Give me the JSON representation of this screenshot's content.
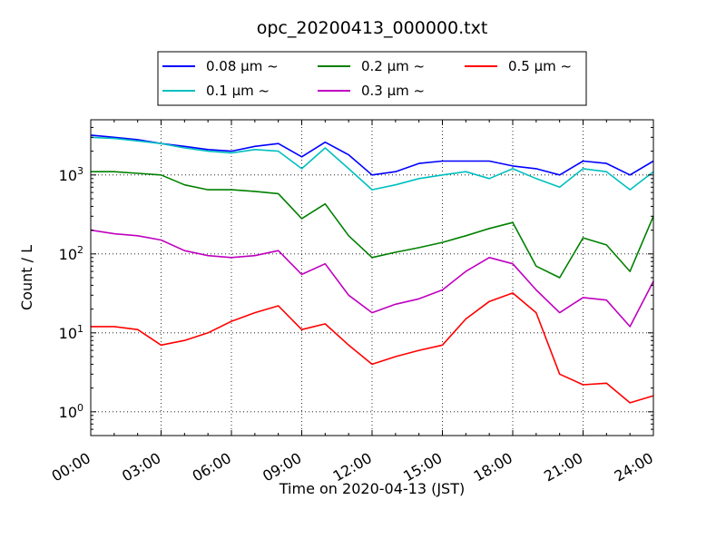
{
  "chart_data": {
    "type": "line",
    "title": "opc_20200413_000000.txt",
    "xlabel": "Time on 2020-04-13 (JST)",
    "ylabel": "Count / L",
    "y_scale": "log",
    "ylim": [
      0.5,
      5000
    ],
    "xlim": [
      "2020-04-13 00:00",
      "2020-04-14 00:00"
    ],
    "x_tick_labels": [
      "00:00",
      "03:00",
      "06:00",
      "09:00",
      "12:00",
      "15:00",
      "18:00",
      "21:00",
      "24:00"
    ],
    "y_ticks": [
      {
        "value": 1,
        "base": "10",
        "exp": "0"
      },
      {
        "value": 10,
        "base": "10",
        "exp": "1"
      },
      {
        "value": 100,
        "base": "10",
        "exp": "2"
      },
      {
        "value": 1000,
        "base": "10",
        "exp": "3"
      }
    ],
    "grid": true,
    "legend_position": "top-center (outside plot)",
    "x": [
      "00:00",
      "01:00",
      "02:00",
      "03:00",
      "04:00",
      "05:00",
      "06:00",
      "07:00",
      "08:00",
      "09:00",
      "10:00",
      "11:00",
      "12:00",
      "13:00",
      "14:00",
      "15:00",
      "16:00",
      "17:00",
      "18:00",
      "19:00",
      "20:00",
      "21:00",
      "22:00",
      "23:00",
      "24:00"
    ],
    "series": [
      {
        "name": "0.08 μm ~",
        "color": "#0000ff",
        "values": [
          3200,
          3000,
          2800,
          2500,
          2300,
          2100,
          2000,
          2300,
          2500,
          1700,
          2600,
          1800,
          1000,
          1100,
          1400,
          1500,
          1500,
          1500,
          1300,
          1200,
          1000,
          1500,
          1400,
          1000,
          1500
        ]
      },
      {
        "name": "0.1 μm ~",
        "color": "#00bfbf",
        "values": [
          3000,
          2900,
          2700,
          2500,
          2200,
          2000,
          1900,
          2100,
          2000,
          1200,
          2200,
          1200,
          650,
          750,
          900,
          1000,
          1100,
          900,
          1200,
          900,
          700,
          1200,
          1100,
          650,
          1100
        ]
      },
      {
        "name": "0.2 μm ~",
        "color": "#008000",
        "values": [
          1100,
          1100,
          1050,
          1000,
          750,
          650,
          650,
          620,
          580,
          280,
          430,
          170,
          90,
          105,
          120,
          140,
          170,
          210,
          250,
          70,
          50,
          160,
          130,
          60,
          300
        ]
      },
      {
        "name": "0.3 μm ~",
        "color": "#bf00bf",
        "values": [
          200,
          180,
          170,
          150,
          110,
          95,
          90,
          95,
          110,
          55,
          75,
          30,
          18,
          23,
          27,
          35,
          60,
          90,
          75,
          35,
          18,
          28,
          26,
          12,
          45
        ]
      },
      {
        "name": "0.5 μm ~",
        "color": "#ff0000",
        "values": [
          12,
          12,
          11,
          7,
          8,
          10,
          14,
          18,
          22,
          11,
          13,
          7,
          4,
          5,
          6,
          7,
          15,
          25,
          32,
          18,
          3,
          2.2,
          2.3,
          1.3,
          1.6
        ]
      }
    ]
  }
}
